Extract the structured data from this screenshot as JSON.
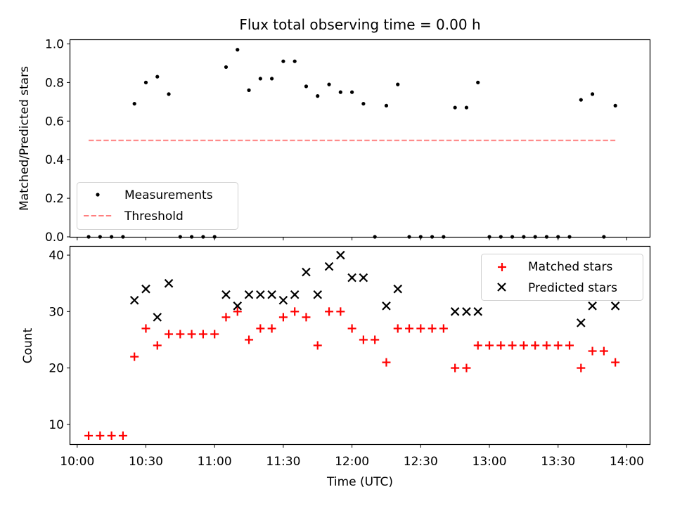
{
  "title": "Flux total observing time = 0.00 h",
  "top_ylabel": "Matched/Predicted stars",
  "bottom_ylabel": "Count",
  "xlabel": "Time (UTC)",
  "legend_top": [
    "Measurements",
    "Threshold"
  ],
  "legend_bottom": [
    "Matched stars",
    "Predicted stars"
  ],
  "colors": {
    "measurements": "#000000",
    "threshold": "#ff7f7f",
    "matched": "#ff0000",
    "predicted": "#000000"
  },
  "chart_data": [
    {
      "type": "scatter",
      "title": "Flux total observing time = 0.00 h",
      "xlabel": "",
      "ylabel": "Matched/Predicted stars",
      "xlim": [
        "09:57",
        "14:10"
      ],
      "ylim": [
        0,
        1.02
      ],
      "xticks": [
        "10:00",
        "10:30",
        "11:00",
        "11:30",
        "12:00",
        "12:30",
        "13:00",
        "13:30",
        "14:00"
      ],
      "yticks": [
        "0.0",
        "0.2",
        "0.4",
        "0.6",
        "0.8",
        "1.0"
      ],
      "legend_position": "lower-left",
      "series": [
        {
          "name": "Measurements",
          "style": "scatter",
          "x": [
            "10:05",
            "10:10",
            "10:15",
            "10:20",
            "10:25",
            "10:30",
            "10:35",
            "10:40",
            "10:45",
            "10:50",
            "10:55",
            "11:00",
            "11:05",
            "11:10",
            "11:15",
            "11:20",
            "11:25",
            "11:30",
            "11:35",
            "11:40",
            "11:45",
            "11:50",
            "11:55",
            "12:00",
            "12:05",
            "12:10",
            "12:15",
            "12:20",
            "12:25",
            "12:30",
            "12:35",
            "12:40",
            "12:45",
            "12:50",
            "12:55",
            "13:00",
            "13:05",
            "13:10",
            "13:15",
            "13:20",
            "13:25",
            "13:30",
            "13:35",
            "13:40",
            "13:45",
            "13:50",
            "13:55"
          ],
          "y": [
            0,
            0,
            0,
            0,
            0.69,
            0.8,
            0.83,
            0.74,
            0,
            0,
            0,
            0,
            0.88,
            0.97,
            0.76,
            0.82,
            0.82,
            0.91,
            0.91,
            0.78,
            0.73,
            0.79,
            0.75,
            0.75,
            0.69,
            0,
            0.68,
            0.79,
            0,
            0,
            0,
            0,
            0.67,
            0.67,
            0.8,
            0,
            0,
            0,
            0,
            0,
            0,
            0,
            0,
            0.71,
            0.74,
            0,
            0.68
          ]
        },
        {
          "name": "Threshold",
          "style": "dashed-line",
          "x": [
            "10:05",
            "13:55"
          ],
          "y": [
            0.5,
            0.5
          ]
        }
      ]
    },
    {
      "type": "scatter",
      "title": "",
      "xlabel": "Time (UTC)",
      "ylabel": "Count",
      "xlim": [
        "09:57",
        "14:10"
      ],
      "ylim": [
        6.5,
        41.5
      ],
      "xticks": [
        "10:00",
        "10:30",
        "11:00",
        "11:30",
        "12:00",
        "12:30",
        "13:00",
        "13:30",
        "14:00"
      ],
      "yticks": [
        "10",
        "20",
        "30",
        "40"
      ],
      "legend_position": "upper-right",
      "series": [
        {
          "name": "Matched stars",
          "marker": "+",
          "x": [
            "10:05",
            "10:10",
            "10:15",
            "10:20",
            "10:25",
            "10:30",
            "10:35",
            "10:40",
            "10:45",
            "10:50",
            "10:55",
            "11:00",
            "11:05",
            "11:10",
            "11:15",
            "11:20",
            "11:25",
            "11:30",
            "11:35",
            "11:40",
            "11:45",
            "11:50",
            "11:55",
            "12:00",
            "12:05",
            "12:10",
            "12:15",
            "12:20",
            "12:25",
            "12:30",
            "12:35",
            "12:40",
            "12:45",
            "12:50",
            "12:55",
            "13:00",
            "13:05",
            "13:10",
            "13:15",
            "13:20",
            "13:25",
            "13:30",
            "13:35",
            "13:40",
            "13:45",
            "13:50",
            "13:55"
          ],
          "y": [
            8,
            8,
            8,
            8,
            22,
            27,
            24,
            26,
            26,
            26,
            26,
            26,
            29,
            30,
            25,
            27,
            27,
            29,
            30,
            29,
            24,
            30,
            30,
            27,
            25,
            25,
            21,
            27,
            27,
            27,
            27,
            27,
            20,
            20,
            24,
            24,
            24,
            24,
            24,
            24,
            24,
            24,
            24,
            20,
            23,
            23,
            21
          ]
        },
        {
          "name": "Predicted stars",
          "marker": "x",
          "x": [
            "10:25",
            "10:30",
            "10:35",
            "10:40",
            "11:05",
            "11:10",
            "11:15",
            "11:20",
            "11:25",
            "11:30",
            "11:35",
            "11:40",
            "11:45",
            "11:50",
            "11:55",
            "12:00",
            "12:05",
            "12:15",
            "12:20",
            "12:45",
            "12:50",
            "12:55",
            "13:40",
            "13:45",
            "13:55"
          ],
          "y": [
            32,
            34,
            29,
            35,
            33,
            31,
            33,
            33,
            33,
            32,
            33,
            37,
            33,
            38,
            40,
            36,
            36,
            31,
            34,
            30,
            30,
            30,
            28,
            31,
            31
          ]
        }
      ]
    }
  ]
}
